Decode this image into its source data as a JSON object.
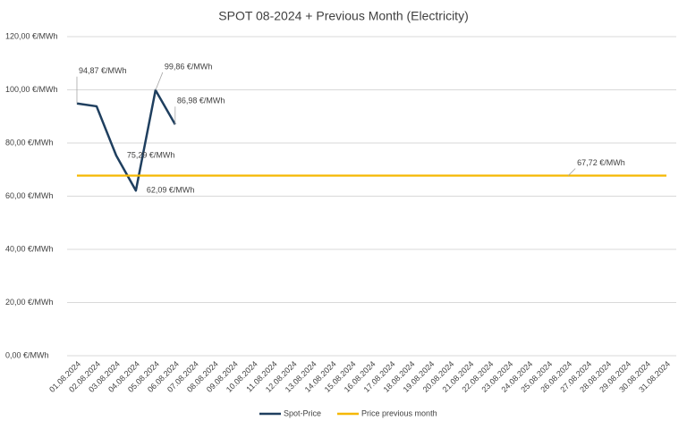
{
  "chart_data": {
    "type": "line",
    "title": "SPOT 08-2024 + Previous Month (Electricity)",
    "categories": [
      "01.08.2024",
      "02.08.2024",
      "03.08.2024",
      "04.08.2024",
      "05.08.2024",
      "06.08.2024",
      "07.08.2024",
      "08.08.2024",
      "09.08.2024",
      "10.08.2024",
      "11.08.2024",
      "12.08.2024",
      "13.08.2024",
      "14.08.2024",
      "15.08.2024",
      "16.08.2024",
      "17.08.2024",
      "18.08.2024",
      "19.08.2024",
      "20.08.2024",
      "21.08.2024",
      "22.08.2024",
      "23.08.2024",
      "24.08.2024",
      "25.08.2024",
      "26.08.2024",
      "27.08.2024",
      "28.08.2024",
      "29.08.2024",
      "30.08.2024",
      "31.08.2024"
    ],
    "series": [
      {
        "name": "Spot-Price",
        "color": "#1f3f5f",
        "values": [
          94.87,
          93.8,
          75.29,
          62.09,
          99.86,
          86.98,
          null,
          null,
          null,
          null,
          null,
          null,
          null,
          null,
          null,
          null,
          null,
          null,
          null,
          null,
          null,
          null,
          null,
          null,
          null,
          null,
          null,
          null,
          null,
          null,
          null
        ],
        "value_labels": [
          "94,87 €/MWh",
          null,
          "75,29 €/MWh",
          "62,09 €/MWh",
          "99,86 €/MWh",
          "86,98 €/MWh",
          null,
          null,
          null,
          null,
          null,
          null,
          null,
          null,
          null,
          null,
          null,
          null,
          null,
          null,
          null,
          null,
          null,
          null,
          null,
          null,
          null,
          null,
          null,
          null,
          null
        ]
      },
      {
        "name": "Price previous month",
        "color": "#f5b800",
        "values": [
          67.72,
          67.72,
          67.72,
          67.72,
          67.72,
          67.72,
          67.72,
          67.72,
          67.72,
          67.72,
          67.72,
          67.72,
          67.72,
          67.72,
          67.72,
          67.72,
          67.72,
          67.72,
          67.72,
          67.72,
          67.72,
          67.72,
          67.72,
          67.72,
          67.72,
          67.72,
          67.72,
          67.72,
          67.72,
          67.72,
          67.72
        ],
        "value_labels": [
          null,
          null,
          null,
          null,
          null,
          null,
          null,
          null,
          null,
          null,
          null,
          null,
          null,
          null,
          null,
          null,
          null,
          null,
          null,
          null,
          null,
          null,
          null,
          null,
          null,
          "67,72 €/MWh",
          null,
          null,
          null,
          null,
          null
        ]
      }
    ],
    "ylim": [
      0,
      120
    ],
    "yticks": [
      {
        "value": 0,
        "label": "0,00 €/MWh"
      },
      {
        "value": 20,
        "label": "20,00 €/MWh"
      },
      {
        "value": 40,
        "label": "40,00 €/MWh"
      },
      {
        "value": 60,
        "label": "60,00 €/MWh"
      },
      {
        "value": 80,
        "label": "80,00 €/MWh"
      },
      {
        "value": 100,
        "label": "100,00 €/MWh"
      },
      {
        "value": 120,
        "label": "120,00 €/MWh"
      }
    ],
    "grid": true,
    "legend": "bottom"
  }
}
